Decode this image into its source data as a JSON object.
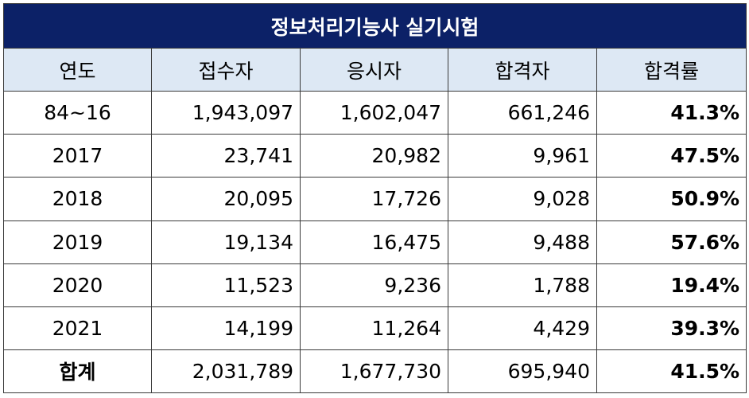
{
  "title": "정보처리기능사 실기시험",
  "columns": [
    "연도",
    "접수자",
    "응시자",
    "합격자",
    "합격률"
  ],
  "rows": [
    {
      "year": "84~16",
      "applicants": "1,943,097",
      "examinees": "1,602,047",
      "passers": "661,246",
      "rate": "41.3%"
    },
    {
      "year": "2017",
      "applicants": "23,741",
      "examinees": "20,982",
      "passers": "9,961",
      "rate": "47.5%"
    },
    {
      "year": "2018",
      "applicants": "20,095",
      "examinees": "17,726",
      "passers": "9,028",
      "rate": "50.9%"
    },
    {
      "year": "2019",
      "applicants": "19,134",
      "examinees": "16,475",
      "passers": "9,488",
      "rate": "57.6%"
    },
    {
      "year": "2020",
      "applicants": "11,523",
      "examinees": "9,236",
      "passers": "1,788",
      "rate": "19.4%"
    },
    {
      "year": "2021",
      "applicants": "14,199",
      "examinees": "11,264",
      "passers": "4,429",
      "rate": "39.3%"
    }
  ],
  "total": {
    "label": "합계",
    "applicants": "2,031,789",
    "examinees": "1,677,730",
    "passers": "695,940",
    "rate": "41.5%"
  },
  "colors": {
    "title_bg": "#0c2167",
    "header_bg": "#dde8f4",
    "border": "#3a3a3a"
  }
}
